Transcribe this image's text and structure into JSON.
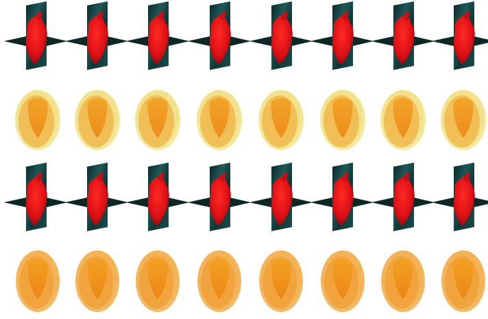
{
  "figure": {
    "description_rows": [
      {
        "kind": "planes-with-heart",
        "count": 8
      },
      {
        "kind": "yellow-orange-shells",
        "count": 8
      },
      {
        "kind": "planes-with-heart",
        "count": 8
      },
      {
        "kind": "orange-shells",
        "count": 8
      }
    ],
    "colors": {
      "plane_dark": "#0c2a2a",
      "plane_teal": "#1f5a5a",
      "plane_blue": "#3b3fb0",
      "heart_red": "#e0141a",
      "heart_dark": "#a00a10",
      "shell_yellow": "#f2ea7a",
      "shell_orange": "#f0a030",
      "shell_inner": "#f08a10"
    }
  }
}
